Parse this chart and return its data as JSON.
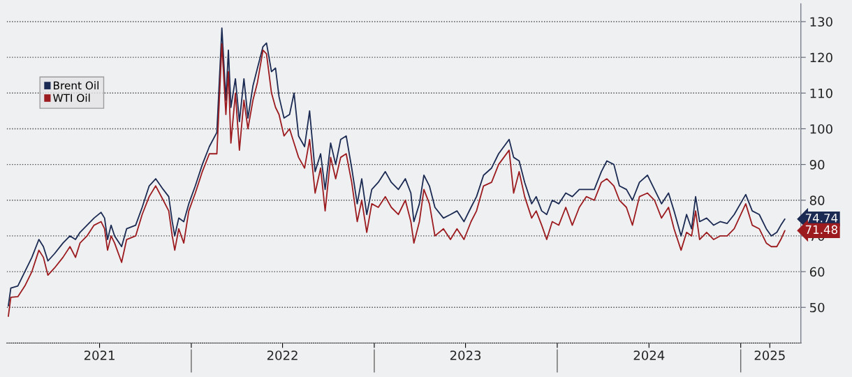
{
  "chart_data": {
    "type": "line",
    "x": [
      "2021-01-01",
      "2021-01-06",
      "2021-01-20",
      "2021-02-03",
      "2021-02-17",
      "2021-03-03",
      "2021-03-12",
      "2021-03-21",
      "2021-04-03",
      "2021-04-20",
      "2021-05-04",
      "2021-05-15",
      "2021-05-24",
      "2021-06-07",
      "2021-06-21",
      "2021-07-05",
      "2021-07-12",
      "2021-07-18",
      "2021-07-25",
      "2021-08-01",
      "2021-08-15",
      "2021-08-25",
      "2021-09-12",
      "2021-09-25",
      "2021-10-09",
      "2021-10-22",
      "2021-11-06",
      "2021-11-17",
      "2021-11-24",
      "2021-11-29",
      "2021-12-07",
      "2021-12-17",
      "2021-12-27",
      "2022-01-09",
      "2022-01-23",
      "2022-02-06",
      "2022-02-21",
      "2022-03-03",
      "2022-03-11",
      "2022-03-16",
      "2022-03-21",
      "2022-03-30",
      "2022-04-07",
      "2022-04-16",
      "2022-04-24",
      "2022-05-04",
      "2022-05-13",
      "2022-05-24",
      "2022-05-31",
      "2022-06-10",
      "2022-06-18",
      "2022-06-25",
      "2022-07-05",
      "2022-07-16",
      "2022-07-25",
      "2022-08-03",
      "2022-08-15",
      "2022-08-25",
      "2022-09-05",
      "2022-09-16",
      "2022-09-25",
      "2022-10-06",
      "2022-10-16",
      "2022-10-26",
      "2022-11-06",
      "2022-11-17",
      "2022-11-28",
      "2022-12-07",
      "2022-12-17",
      "2022-12-27",
      "2023-01-09",
      "2023-01-23",
      "2023-02-04",
      "2023-02-18",
      "2023-03-04",
      "2023-03-15",
      "2023-03-21",
      "2023-04-01",
      "2023-04-10",
      "2023-04-21",
      "2023-05-02",
      "2023-05-19",
      "2023-06-02",
      "2023-06-15",
      "2023-06-29",
      "2023-07-13",
      "2023-07-24",
      "2023-08-07",
      "2023-08-23",
      "2023-09-06",
      "2023-09-27",
      "2023-10-06",
      "2023-10-17",
      "2023-10-28",
      "2023-11-11",
      "2023-11-20",
      "2023-12-01",
      "2023-12-11",
      "2023-12-22",
      "2024-01-04",
      "2024-01-18",
      "2024-01-31",
      "2024-02-14",
      "2024-02-28",
      "2024-03-15",
      "2024-03-29",
      "2024-04-09",
      "2024-04-23",
      "2024-05-04",
      "2024-05-18",
      "2024-05-30",
      "2024-06-13",
      "2024-06-29",
      "2024-07-13",
      "2024-07-27",
      "2024-08-10",
      "2024-08-21",
      "2024-09-04",
      "2024-09-15",
      "2024-09-25",
      "2024-10-03",
      "2024-10-11",
      "2024-10-25",
      "2024-11-08",
      "2024-11-21",
      "2024-12-05",
      "2024-12-19",
      "2025-01-11",
      "2025-01-24",
      "2025-02-07",
      "2025-02-21",
      "2025-03-03",
      "2025-03-14",
      "2025-03-22",
      "2025-03-30"
    ],
    "series": [
      {
        "name": "Brent Oil",
        "color": "#1b2a52",
        "values": [
          50.4,
          55.4,
          56,
          60,
          64,
          69,
          67,
          63,
          65,
          68,
          70,
          69,
          71,
          73,
          75,
          76.6,
          75,
          69,
          73,
          70,
          67,
          72,
          73,
          78,
          84,
          86,
          83,
          81,
          74,
          70,
          75,
          74,
          79,
          84,
          90,
          95,
          99,
          128.2,
          108,
          122,
          106,
          114,
          102,
          114,
          103,
          112,
          117,
          123,
          124,
          116,
          117,
          109,
          103,
          104,
          110,
          98,
          95,
          105,
          88,
          93,
          83,
          96,
          90,
          97,
          98,
          89,
          79,
          86,
          76,
          83,
          85,
          88,
          85,
          83,
          86,
          82,
          74,
          79,
          87,
          84,
          78,
          75,
          76,
          77,
          74,
          78,
          81,
          87,
          89,
          93,
          97,
          92,
          91,
          85,
          79,
          81,
          77,
          76,
          80,
          79,
          82,
          81,
          83,
          83,
          83,
          88,
          91,
          90,
          84,
          83,
          80,
          85,
          87,
          83,
          79,
          82,
          77,
          70,
          76,
          72,
          81,
          74,
          75,
          73,
          74,
          73.5,
          76,
          81.6,
          77,
          76,
          72,
          70,
          71,
          73,
          74.74
        ]
      },
      {
        "name": "WTI Oil",
        "color": "#9b1b1f",
        "values": [
          47.5,
          52.8,
          53,
          56,
          60,
          66,
          64,
          59,
          61,
          64,
          67,
          64,
          68,
          70,
          73,
          74,
          72,
          66,
          70,
          68,
          62.6,
          69,
          70,
          76,
          81,
          84,
          80,
          77,
          70,
          66,
          72,
          68,
          77,
          82,
          88,
          93,
          93,
          123.8,
          104,
          116,
          96,
          110,
          94,
          108,
          100,
          108,
          113,
          122,
          121,
          110,
          106,
          104,
          98,
          100,
          96,
          92,
          89,
          97,
          82,
          89,
          77,
          92,
          86,
          92,
          93,
          85,
          74,
          80,
          71,
          79,
          78,
          81,
          78,
          76,
          80,
          74,
          68,
          74,
          83,
          79,
          70,
          72,
          69,
          72,
          69,
          74,
          77,
          84,
          85,
          90,
          94,
          82,
          88,
          81,
          75,
          77,
          73,
          69,
          74,
          73,
          78,
          73,
          78,
          81,
          80,
          85,
          86,
          84,
          80,
          78,
          73,
          81,
          82,
          80,
          75,
          78,
          72,
          66,
          71,
          70,
          77,
          69,
          71,
          69,
          70,
          70,
          72,
          79,
          73,
          72,
          68,
          67,
          67,
          69,
          71.48
        ]
      }
    ],
    "ylim": [
      40,
      135
    ],
    "yticks": [
      50,
      60,
      70,
      80,
      90,
      100,
      110,
      120,
      130
    ],
    "xlim": [
      "2020-12-29",
      "2025-05-01"
    ],
    "xticks": [
      {
        "value": "2021-07-02",
        "label": "2021"
      },
      {
        "value": "2022-01-01",
        "label": null
      },
      {
        "value": "2022-07-02",
        "label": "2022"
      },
      {
        "value": "2023-01-01",
        "label": null
      },
      {
        "value": "2023-07-02",
        "label": "2023"
      },
      {
        "value": "2024-01-01",
        "label": null
      },
      {
        "value": "2024-07-02",
        "label": "2024"
      },
      {
        "value": "2025-01-01",
        "label": null
      },
      {
        "value": "2025-02-28",
        "label": "2025"
      }
    ],
    "annotations": [
      {
        "text": "74.74",
        "x": "2025-03-30",
        "y": 74.74
      },
      {
        "text": "71.48",
        "x": "2025-03-30",
        "y": 71.48
      }
    ],
    "grid": "y",
    "legend": "upper left",
    "line_style": "solid",
    "marker": "none"
  }
}
